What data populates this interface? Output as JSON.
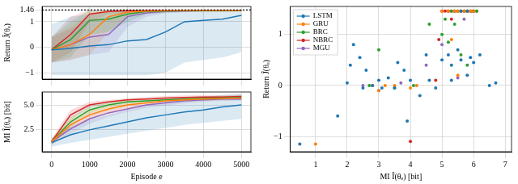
{
  "chart_data": [
    {
      "type": "line",
      "y_label": "Return Ĵ(θₑ)",
      "x": [
        0,
        500,
        1000,
        1500,
        2000,
        2500,
        3000,
        3500,
        4000,
        4500,
        5000
      ],
      "xlim": [
        -250,
        5250
      ],
      "xticks": [
        0,
        1000,
        2000,
        3000,
        4000,
        5000
      ],
      "ylim": [
        -1.25,
        1.6
      ],
      "yticks": [
        {
          "value": -1,
          "label": "−1"
        },
        0,
        1,
        1.46
      ],
      "hline": 1.46,
      "grid": true,
      "tick_labels": "y",
      "series": [
        {
          "color": "#1f77b4",
          "values": [
            -0.1,
            -0.05,
            0.05,
            0.1,
            0.25,
            0.3,
            0.6,
            1.0,
            1.05,
            1.1,
            1.25
          ],
          "lower": [
            -1.1,
            -1.1,
            -1.1,
            -1.1,
            -1.1,
            -1.1,
            -1.0,
            -0.6,
            -0.5,
            -0.4,
            -0.2
          ],
          "upper": [
            0.9,
            1.2,
            1.3,
            1.4,
            1.46,
            1.46,
            1.46,
            1.46,
            1.46,
            1.46,
            1.46
          ]
        },
        {
          "color": "#ff7f0e",
          "values": [
            -0.1,
            0.1,
            0.5,
            1.2,
            1.38,
            1.42,
            1.43,
            1.44,
            1.44,
            1.44,
            1.44
          ],
          "lower": [
            -0.6,
            -0.5,
            -0.3,
            0.6,
            1.2,
            1.35,
            1.38,
            1.4,
            1.4,
            1.4,
            1.4
          ],
          "upper": [
            0.4,
            0.8,
            1.3,
            1.46,
            1.46,
            1.46,
            1.46,
            1.46,
            1.46,
            1.46,
            1.46
          ]
        },
        {
          "color": "#2ca02c",
          "values": [
            -0.1,
            0.3,
            1.05,
            1.1,
            1.3,
            1.4,
            1.42,
            1.43,
            1.43,
            1.43,
            1.44
          ],
          "lower": [
            -0.6,
            -0.4,
            0.5,
            0.6,
            1.0,
            1.3,
            1.36,
            1.38,
            1.38,
            1.38,
            1.4
          ],
          "upper": [
            0.4,
            1.0,
            1.46,
            1.46,
            1.46,
            1.46,
            1.46,
            1.46,
            1.46,
            1.46,
            1.46
          ]
        },
        {
          "color": "#d62728",
          "values": [
            -0.1,
            0.5,
            1.3,
            1.4,
            1.43,
            1.44,
            1.44,
            1.44,
            1.44,
            1.45,
            1.45
          ],
          "lower": [
            -0.6,
            -0.2,
            1.0,
            1.3,
            1.38,
            1.4,
            1.4,
            1.4,
            1.4,
            1.42,
            1.42
          ],
          "upper": [
            0.4,
            1.2,
            1.46,
            1.46,
            1.46,
            1.46,
            1.46,
            1.46,
            1.46,
            1.46,
            1.46
          ]
        },
        {
          "color": "#9467bd",
          "values": [
            -0.1,
            0.1,
            0.4,
            0.5,
            1.2,
            1.35,
            1.4,
            1.42,
            1.43,
            1.43,
            1.43
          ],
          "lower": [
            -0.6,
            -0.5,
            -0.3,
            -0.2,
            0.8,
            1.2,
            1.33,
            1.38,
            1.4,
            1.4,
            1.4
          ],
          "upper": [
            0.4,
            0.7,
            1.1,
            1.2,
            1.46,
            1.46,
            1.46,
            1.46,
            1.46,
            1.46,
            1.46
          ]
        }
      ]
    },
    {
      "type": "line",
      "x_label": "Episode e",
      "y_label": "MI Î(θₑ) [bit]",
      "x": [
        0,
        500,
        1000,
        1500,
        2000,
        2500,
        3000,
        3500,
        4000,
        4500,
        5000
      ],
      "xlim": [
        -250,
        5250
      ],
      "xticks": [
        0,
        1000,
        2000,
        3000,
        4000,
        5000
      ],
      "ylim": [
        0.3,
        6.3
      ],
      "yticks": [
        2.5,
        {
          "value": 5,
          "label": "5.0"
        }
      ],
      "grid": true,
      "series": [
        {
          "color": "#1f77b4",
          "values": [
            1.2,
            2.0,
            2.5,
            2.9,
            3.3,
            3.7,
            4.0,
            4.3,
            4.5,
            4.8,
            5.0
          ],
          "lower": [
            0.8,
            1.2,
            1.5,
            1.8,
            2.1,
            2.4,
            2.7,
            3.0,
            3.2,
            3.4,
            3.6
          ],
          "upper": [
            1.6,
            2.8,
            3.5,
            4.0,
            4.5,
            5.0,
            5.3,
            5.6,
            5.8,
            6.0,
            6.1
          ]
        },
        {
          "color": "#ff7f0e",
          "values": [
            1.3,
            3.0,
            4.0,
            4.6,
            5.0,
            5.2,
            5.4,
            5.5,
            5.6,
            5.65,
            5.7
          ],
          "lower": [
            1.0,
            2.5,
            3.5,
            4.2,
            4.7,
            5.0,
            5.2,
            5.3,
            5.4,
            5.45,
            5.5
          ],
          "upper": [
            1.6,
            3.5,
            4.5,
            5.0,
            5.3,
            5.4,
            5.6,
            5.7,
            5.8,
            5.85,
            5.9
          ]
        },
        {
          "color": "#2ca02c",
          "values": [
            1.3,
            3.3,
            4.5,
            5.0,
            5.3,
            5.4,
            5.5,
            5.6,
            5.65,
            5.7,
            5.75
          ],
          "lower": [
            1.0,
            2.8,
            4.1,
            4.7,
            5.0,
            5.2,
            5.3,
            5.4,
            5.45,
            5.5,
            5.55
          ],
          "upper": [
            1.6,
            3.8,
            4.9,
            5.3,
            5.6,
            5.6,
            5.7,
            5.8,
            5.85,
            5.9,
            5.95
          ]
        },
        {
          "color": "#d62728",
          "values": [
            1.3,
            4.0,
            5.0,
            5.3,
            5.5,
            5.6,
            5.7,
            5.75,
            5.8,
            5.8,
            5.85
          ],
          "lower": [
            1.0,
            3.5,
            4.7,
            5.1,
            5.3,
            5.4,
            5.5,
            5.55,
            5.6,
            5.6,
            5.65
          ],
          "upper": [
            1.6,
            4.5,
            5.3,
            5.5,
            5.7,
            5.8,
            5.9,
            5.95,
            6.0,
            6.0,
            6.05
          ]
        },
        {
          "color": "#9467bd",
          "values": [
            1.3,
            2.6,
            3.6,
            4.2,
            4.6,
            5.0,
            5.2,
            5.4,
            5.5,
            5.6,
            5.6
          ],
          "lower": [
            1.0,
            2.1,
            3.1,
            3.8,
            4.3,
            4.7,
            4.95,
            5.15,
            5.3,
            5.4,
            5.4
          ],
          "upper": [
            1.6,
            3.1,
            4.1,
            4.6,
            4.9,
            5.3,
            5.45,
            5.65,
            5.7,
            5.8,
            5.8
          ]
        }
      ]
    },
    {
      "type": "scatter",
      "x_label": "MI Î(θₑ) [bit]",
      "y_label": "Return Ĵ(θₑ)",
      "xlim": [
        0.2,
        7.2
      ],
      "xticks": [
        1,
        2,
        3,
        4,
        5,
        6,
        7
      ],
      "ylim": [
        -1.3,
        1.55
      ],
      "yticks": [
        {
          "value": -1,
          "label": "−1"
        },
        0,
        1
      ],
      "grid": true,
      "legend": "upper left",
      "marker": "circle",
      "series": [
        {
          "name": "LSTM",
          "color": "#1f77b4",
          "x": [
            0.5,
            1.7,
            2.0,
            2.1,
            2.2,
            2.4,
            2.5,
            2.6,
            2.8,
            3.0,
            3.1,
            3.3,
            3.5,
            3.6,
            3.8,
            4.0,
            4.3,
            4.6,
            4.8,
            5.0,
            5.2,
            5.3,
            5.5,
            5.6,
            5.8,
            5.9,
            6.0,
            6.2,
            6.5,
            6.7,
            5.6,
            5.8,
            5.3,
            3.9,
            4.5
          ],
          "values": [
            -1.15,
            -0.6,
            0.05,
            0.4,
            0.8,
            0.55,
            -0.05,
            0.3,
            0.0,
            0.1,
            -0.05,
            0.15,
            -0.05,
            0.45,
            0.3,
            0.1,
            -0.2,
            0.1,
            -0.05,
            0.5,
            0.6,
            0.4,
            0.7,
            0.5,
            0.2,
            0.55,
            0.45,
            0.6,
            0.0,
            0.05,
            1.46,
            1.46,
            0.1,
            -0.7,
            0.6
          ]
        },
        {
          "name": "GRU",
          "color": "#ff7f0e",
          "x": [
            1.0,
            2.8,
            3.0,
            3.2,
            3.5,
            4.0,
            5.0,
            5.2,
            5.4,
            5.5,
            5.6,
            5.7,
            5.8,
            5.9,
            6.0,
            5.3,
            5.5,
            4.2
          ],
          "values": [
            -1.15,
            0.0,
            -0.1,
            0.0,
            0.0,
            -0.05,
            1.46,
            1.46,
            1.46,
            1.46,
            1.46,
            1.46,
            1.46,
            1.46,
            1.46,
            0.9,
            0.2,
            0.0
          ]
        },
        {
          "name": "BRC",
          "color": "#2ca02c",
          "x": [
            3.5,
            4.1,
            4.6,
            5.0,
            5.1,
            5.2,
            5.3,
            5.4,
            5.5,
            5.6,
            5.7,
            5.8,
            5.9,
            6.0,
            6.1,
            5.4,
            5.6,
            5.8,
            2.7,
            3.0
          ],
          "values": [
            -0.05,
            0.0,
            1.2,
            1.0,
            1.3,
            0.85,
            1.46,
            1.46,
            1.46,
            1.46,
            1.46,
            1.46,
            1.46,
            1.46,
            1.46,
            1.2,
            0.6,
            0.4,
            0.0,
            0.7
          ]
        },
        {
          "name": "NBRC",
          "color": "#d62728",
          "x": [
            4.0,
            4.8,
            5.0,
            5.1,
            5.2,
            5.3,
            5.4,
            5.5,
            5.6,
            5.7,
            5.8,
            5.9,
            6.0,
            6.1,
            5.3,
            4.9
          ],
          "values": [
            -1.1,
            0.1,
            1.46,
            1.46,
            1.46,
            1.46,
            1.46,
            1.46,
            1.46,
            1.46,
            1.46,
            1.46,
            1.46,
            1.46,
            1.3,
            0.9
          ]
        },
        {
          "name": "MGU",
          "color": "#9467bd",
          "x": [
            2.5,
            3.0,
            4.5,
            5.0,
            5.2,
            5.4,
            5.6,
            5.8,
            5.95,
            5.5,
            5.7,
            3.7
          ],
          "values": [
            0.0,
            -0.1,
            0.4,
            0.8,
            1.46,
            1.46,
            1.46,
            1.46,
            1.46,
            0.15,
            1.3,
            0.05
          ]
        }
      ]
    }
  ]
}
